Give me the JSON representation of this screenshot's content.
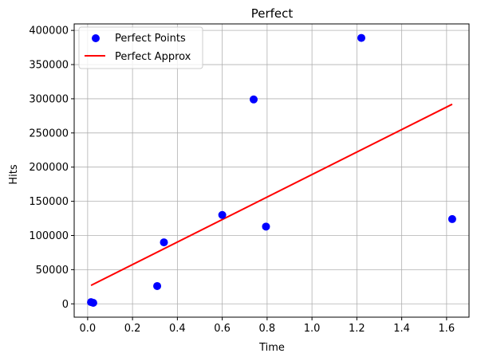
{
  "chart_data": {
    "type": "scatter",
    "title": "Perfect",
    "xlabel": "Time",
    "ylabel": "Hits",
    "xlim": [
      -0.06,
      1.7
    ],
    "ylim": [
      -19500,
      409500
    ],
    "xticks": [
      0.0,
      0.2,
      0.4,
      0.6,
      0.8,
      1.0,
      1.2,
      1.4,
      1.6
    ],
    "xtick_labels": [
      "0.0",
      "0.2",
      "0.4",
      "0.6",
      "0.8",
      "1.0",
      "1.2",
      "1.4",
      "1.6"
    ],
    "yticks": [
      0,
      50000,
      100000,
      150000,
      200000,
      250000,
      300000,
      350000,
      400000
    ],
    "ytick_labels": [
      "0",
      "50000",
      "100000",
      "150000",
      "200000",
      "250000",
      "300000",
      "350000",
      "400000"
    ],
    "grid": true,
    "legend_position": "top-left",
    "series": [
      {
        "name": "Perfect Points",
        "kind": "scatter",
        "color": "#0000ff",
        "x": [
          0.015,
          0.025,
          0.31,
          0.34,
          0.6,
          0.74,
          0.795,
          1.22,
          1.625
        ],
        "y": [
          2500,
          1500,
          26000,
          90000,
          130000,
          299000,
          113000,
          389000,
          124000
        ]
      },
      {
        "name": "Perfect Approx",
        "kind": "line",
        "color": "#ff0000",
        "x": [
          0.015,
          1.625
        ],
        "y": [
          27000,
          292000
        ]
      }
    ]
  }
}
